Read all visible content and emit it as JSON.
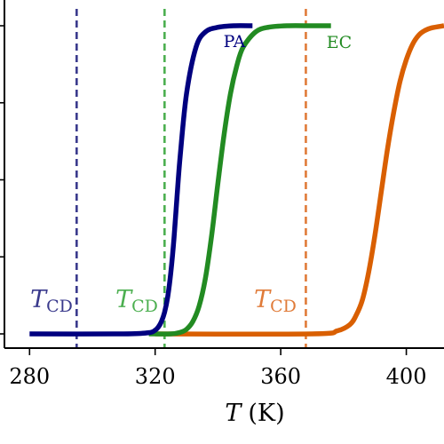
{
  "chart_data": {
    "type": "line",
    "xlabel": "T (K)",
    "xlabel_italic": "T",
    "xlabel_unit": "(K)",
    "xlim": [
      272,
      412
    ],
    "xticks": [
      280,
      320,
      360,
      400
    ],
    "ylim": [
      0,
      1.04
    ],
    "ylabel": "",
    "grid": false,
    "series": [
      {
        "name": "PA",
        "color": "#00007f",
        "x_start": 280,
        "x_end": 351,
        "x": [
          280,
          310,
          318,
          320,
          321,
          322,
          323,
          324,
          325,
          326,
          327,
          328,
          330,
          333,
          336,
          340,
          345,
          351
        ],
        "y": [
          0.0,
          0.0,
          0.004,
          0.012,
          0.022,
          0.04,
          0.07,
          0.12,
          0.2,
          0.31,
          0.45,
          0.58,
          0.78,
          0.93,
          0.98,
          0.995,
          1.0,
          1.0
        ]
      },
      {
        "name": "EC",
        "color": "#228b22",
        "x_start": 318,
        "x_end": 376,
        "x": [
          318,
          325,
          328,
          330,
          332,
          334,
          336,
          338,
          340,
          342,
          344,
          346,
          348,
          352,
          356,
          362,
          370,
          376
        ],
        "y": [
          0.0,
          0.0,
          0.005,
          0.015,
          0.04,
          0.09,
          0.18,
          0.32,
          0.49,
          0.65,
          0.78,
          0.87,
          0.93,
          0.98,
          0.995,
          1.0,
          1.0,
          1.0
        ]
      },
      {
        "name": "",
        "color": "#d95f02",
        "x_start": 320,
        "x_end": 412,
        "x": [
          320,
          370,
          378,
          382,
          384,
          386,
          388,
          390,
          392,
          394,
          396,
          398,
          400,
          402,
          404,
          406,
          408,
          412
        ],
        "y": [
          0.0,
          0.0,
          0.01,
          0.03,
          0.06,
          0.11,
          0.2,
          0.32,
          0.46,
          0.6,
          0.72,
          0.82,
          0.89,
          0.94,
          0.97,
          0.985,
          0.993,
          1.0
        ]
      }
    ],
    "vlines": [
      {
        "x": 295,
        "color": "#3a3a8c",
        "label_main": "T",
        "label_sub": "CD"
      },
      {
        "x": 323,
        "color": "#4caf50",
        "label_main": "T",
        "label_sub": "CD"
      },
      {
        "x": 368,
        "color": "#e07b39",
        "label_main": "T",
        "label_sub": "CD"
      }
    ]
  }
}
